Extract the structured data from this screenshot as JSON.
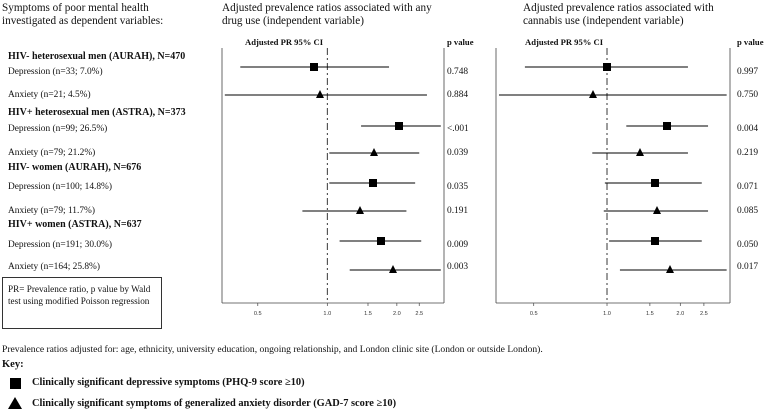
{
  "header": {
    "left_title": [
      "Symptoms of poor mental health",
      "investigated as dependent variables:"
    ],
    "panel1_title": [
      "Adjusted prevalence ratios associated with any",
      "drug use (independent variable)"
    ],
    "panel2_title": [
      "Adjusted prevalence ratios associated with",
      "cannabis use (independent variable)"
    ],
    "ci_label": "Adjusted PR 95% CI",
    "pvalue_label": "p value"
  },
  "rows": [
    {
      "type": "group",
      "label": "HIV- heterosexual men (AURAH), N=470"
    },
    {
      "type": "item",
      "label": "Depression (n=33; 7.0%)",
      "p1": "0.748",
      "p2": "0.997",
      "symbol": "square"
    },
    {
      "type": "item",
      "label": "Anxiety (n=21; 4.5%)",
      "p1": "0.884",
      "p2": "0.750",
      "symbol": "triangle"
    },
    {
      "type": "group",
      "label": "HIV+ heterosexual men (ASTRA), N=373"
    },
    {
      "type": "item",
      "label": "Depression (n=99; 26.5%)",
      "p1": "<.001",
      "p2": "0.004",
      "symbol": "square"
    },
    {
      "type": "item",
      "label": "Anxiety (n=79; 21.2%)",
      "p1": "0.039",
      "p2": "0.219",
      "symbol": "triangle"
    },
    {
      "type": "group",
      "label": "HIV- women (AURAH), N=676"
    },
    {
      "type": "item",
      "label": "Depression (n=100; 14.8%)",
      "p1": "0.035",
      "p2": "0.071",
      "symbol": "square"
    },
    {
      "type": "item",
      "label": "Anxiety (n=79; 11.7%)",
      "p1": "0.191",
      "p2": "0.085",
      "symbol": "triangle"
    },
    {
      "type": "group",
      "label": "HIV+ women (ASTRA), N=637"
    },
    {
      "type": "item",
      "label": "Depression (n=191; 30.0%)",
      "p1": "0.009",
      "p2": "0.050",
      "symbol": "square"
    },
    {
      "type": "item",
      "label": "Anxiety (n=164; 25.8%)",
      "p1": "0.003",
      "p2": "0.017",
      "symbol": "triangle"
    }
  ],
  "note": "PR= Prevalence ratio, p value by Wald test using modified Poisson regression",
  "footnote": "Prevalence ratios adjusted for: age, ethnicity, university education, ongoing relationship, and London clinic site (London or outside London).",
  "key": {
    "title": "Key:",
    "depression": "Clinically significant depressive symptoms (PHQ-9 score ≥10)",
    "anxiety": "Clinically significant symptoms of generalized anxiety disorder (GAD-7 score ≥10)"
  },
  "chart_data": [
    {
      "type": "forest",
      "scale": "log",
      "xlim": [
        0.35,
        3.2
      ],
      "reference_line": 1.0,
      "ticks": [
        0.5,
        1.0,
        1.5,
        2.0,
        2.5
      ],
      "tick_labels": [
        "0.5",
        "1.0",
        "1.5",
        "2.0",
        "2.5"
      ],
      "points": [
        {
          "label": "Depression (n=33; 7.0%)",
          "pr": 0.88,
          "lo": 0.42,
          "hi": 1.85,
          "symbol": "square"
        },
        {
          "label": "Anxiety (n=21; 4.5%)",
          "pr": 0.93,
          "lo": 0.36,
          "hi": 2.7,
          "symbol": "triangle"
        },
        {
          "label": "Depression (n=99; 26.5%)",
          "pr": 2.05,
          "lo": 1.4,
          "hi": 3.1,
          "symbol": "square"
        },
        {
          "label": "Anxiety (n=79; 21.2%)",
          "pr": 1.6,
          "lo": 1.02,
          "hi": 2.5,
          "symbol": "triangle"
        },
        {
          "label": "Depression (n=100; 14.8%)",
          "pr": 1.58,
          "lo": 1.02,
          "hi": 2.4,
          "symbol": "square"
        },
        {
          "label": "Anxiety (n=79; 11.7%)",
          "pr": 1.38,
          "lo": 0.78,
          "hi": 2.2,
          "symbol": "triangle"
        },
        {
          "label": "Depression (n=191; 30.0%)",
          "pr": 1.7,
          "lo": 1.13,
          "hi": 2.55,
          "symbol": "square"
        },
        {
          "label": "Anxiety (n=164; 25.8%)",
          "pr": 1.93,
          "lo": 1.25,
          "hi": 3.1,
          "symbol": "triangle"
        }
      ]
    },
    {
      "type": "forest",
      "scale": "log",
      "xlim": [
        0.35,
        3.2
      ],
      "reference_line": 1.0,
      "ticks": [
        0.5,
        1.0,
        1.5,
        2.0,
        2.5
      ],
      "tick_labels": [
        "0.5",
        "1.0",
        "1.5",
        "2.0",
        "2.5"
      ],
      "points": [
        {
          "label": "Depression (n=33; 7.0%)",
          "pr": 1.0,
          "lo": 0.46,
          "hi": 2.15,
          "symbol": "square"
        },
        {
          "label": "Anxiety (n=21; 4.5%)",
          "pr": 0.88,
          "lo": 0.36,
          "hi": 3.1,
          "symbol": "triangle"
        },
        {
          "label": "Depression (n=99; 26.5%)",
          "pr": 1.77,
          "lo": 1.2,
          "hi": 2.6,
          "symbol": "square"
        },
        {
          "label": "Anxiety (n=79; 21.2%)",
          "pr": 1.37,
          "lo": 0.87,
          "hi": 2.15,
          "symbol": "triangle"
        },
        {
          "label": "Depression (n=100; 14.8%)",
          "pr": 1.57,
          "lo": 0.98,
          "hi": 2.45,
          "symbol": "square"
        },
        {
          "label": "Anxiety (n=79; 11.7%)",
          "pr": 1.6,
          "lo": 0.97,
          "hi": 2.6,
          "symbol": "triangle"
        },
        {
          "label": "Depression (n=191; 30.0%)",
          "pr": 1.58,
          "lo": 1.02,
          "hi": 2.45,
          "symbol": "square"
        },
        {
          "label": "Anxiety (n=164; 25.8%)",
          "pr": 1.82,
          "lo": 1.13,
          "hi": 3.1,
          "symbol": "triangle"
        }
      ]
    }
  ]
}
